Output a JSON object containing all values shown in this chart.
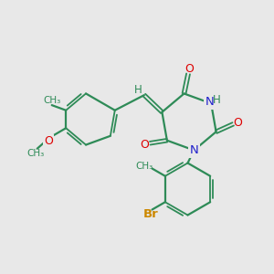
{
  "background_color": "#e8e8e8",
  "bond_color": "#2e8b57",
  "N_color": "#2222cc",
  "O_color": "#dd0000",
  "Br_color": "#cc8800",
  "H_color": "#2e8b57",
  "figsize": [
    3.0,
    3.0
  ],
  "dpi": 100,
  "xlim": [
    0,
    10
  ],
  "ylim": [
    0,
    10
  ]
}
